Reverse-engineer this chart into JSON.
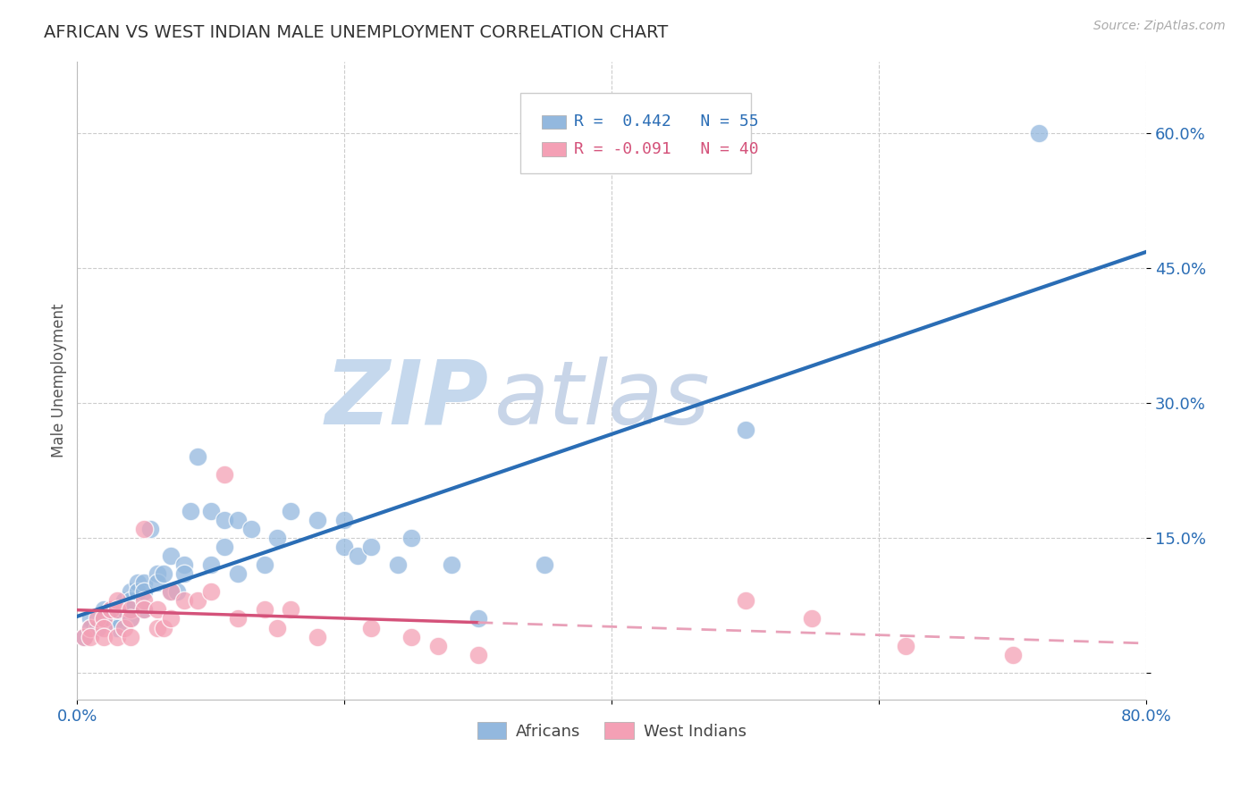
{
  "title": "AFRICAN VS WEST INDIAN MALE UNEMPLOYMENT CORRELATION CHART",
  "source": "Source: ZipAtlas.com",
  "ylabel": "Male Unemployment",
  "xlim": [
    0.0,
    0.8
  ],
  "ylim": [
    -0.03,
    0.68
  ],
  "yticks": [
    0.0,
    0.15,
    0.3,
    0.45,
    0.6
  ],
  "ytick_labels": [
    "",
    "15.0%",
    "30.0%",
    "45.0%",
    "60.0%"
  ],
  "xticks": [
    0.0,
    0.2,
    0.4,
    0.6,
    0.8
  ],
  "xtick_labels": [
    "0.0%",
    "",
    "",
    "",
    "80.0%"
  ],
  "legend_r_african": "R =  0.442",
  "legend_n_african": "N = 55",
  "legend_r_westindian": "R = -0.091",
  "legend_n_westindian": "N = 40",
  "african_color": "#93b8de",
  "westindian_color": "#f4a0b5",
  "african_line_color": "#2a6db5",
  "westindian_line_solid_color": "#d4527a",
  "westindian_line_dashed_color": "#e8a0b8",
  "watermark_zip_color": "#c5d8ed",
  "watermark_atlas_color": "#c8d5e8",
  "background_color": "#ffffff",
  "grid_color": "#cccccc",
  "africans_x": [
    0.005,
    0.01,
    0.01,
    0.015,
    0.02,
    0.02,
    0.025,
    0.025,
    0.03,
    0.03,
    0.03,
    0.035,
    0.035,
    0.04,
    0.04,
    0.04,
    0.04,
    0.045,
    0.045,
    0.05,
    0.05,
    0.05,
    0.055,
    0.06,
    0.06,
    0.065,
    0.07,
    0.07,
    0.075,
    0.08,
    0.08,
    0.085,
    0.09,
    0.1,
    0.1,
    0.11,
    0.11,
    0.12,
    0.12,
    0.13,
    0.14,
    0.15,
    0.16,
    0.18,
    0.2,
    0.2,
    0.21,
    0.22,
    0.24,
    0.25,
    0.28,
    0.3,
    0.35,
    0.5,
    0.72
  ],
  "africans_y": [
    0.04,
    0.06,
    0.05,
    0.05,
    0.07,
    0.06,
    0.07,
    0.06,
    0.07,
    0.06,
    0.05,
    0.08,
    0.07,
    0.09,
    0.08,
    0.07,
    0.06,
    0.1,
    0.09,
    0.1,
    0.09,
    0.07,
    0.16,
    0.11,
    0.1,
    0.11,
    0.13,
    0.09,
    0.09,
    0.12,
    0.11,
    0.18,
    0.24,
    0.18,
    0.12,
    0.17,
    0.14,
    0.17,
    0.11,
    0.16,
    0.12,
    0.15,
    0.18,
    0.17,
    0.14,
    0.17,
    0.13,
    0.14,
    0.12,
    0.15,
    0.12,
    0.06,
    0.12,
    0.27,
    0.6
  ],
  "westindians_x": [
    0.005,
    0.01,
    0.01,
    0.015,
    0.02,
    0.02,
    0.02,
    0.025,
    0.03,
    0.03,
    0.03,
    0.035,
    0.04,
    0.04,
    0.04,
    0.05,
    0.05,
    0.05,
    0.06,
    0.06,
    0.065,
    0.07,
    0.07,
    0.08,
    0.09,
    0.1,
    0.11,
    0.12,
    0.14,
    0.15,
    0.16,
    0.18,
    0.22,
    0.25,
    0.27,
    0.3,
    0.5,
    0.55,
    0.62,
    0.7
  ],
  "westindians_y": [
    0.04,
    0.05,
    0.04,
    0.06,
    0.06,
    0.05,
    0.04,
    0.07,
    0.08,
    0.07,
    0.04,
    0.05,
    0.07,
    0.06,
    0.04,
    0.16,
    0.08,
    0.07,
    0.07,
    0.05,
    0.05,
    0.09,
    0.06,
    0.08,
    0.08,
    0.09,
    0.22,
    0.06,
    0.07,
    0.05,
    0.07,
    0.04,
    0.05,
    0.04,
    0.03,
    0.02,
    0.08,
    0.06,
    0.03,
    0.02
  ]
}
